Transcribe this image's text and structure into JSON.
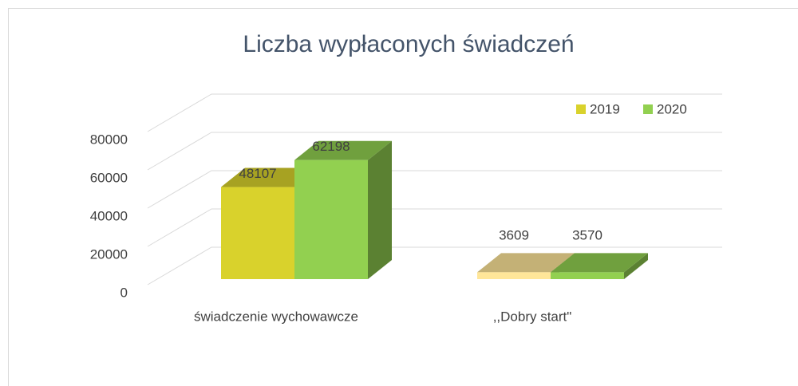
{
  "chart_data": {
    "type": "bar3d",
    "title": "Liczba wypłaconych świadczeń",
    "categories": [
      "świadczenie wychowawcze",
      ",,Dobry start\""
    ],
    "series": [
      {
        "name": "2019",
        "color": "#d9d22c",
        "point_colors": [
          "#d9d22c",
          "#ffe699"
        ],
        "values": [
          48107,
          3609
        ]
      },
      {
        "name": "2020",
        "color": "#92d050",
        "point_colors": [
          "#92d050",
          "#92d050"
        ],
        "values": [
          62198,
          3570
        ]
      }
    ],
    "ylim": [
      0,
      80000
    ],
    "yticks": [
      0,
      20000,
      40000,
      60000,
      80000
    ],
    "grid": true,
    "legend": "top-right"
  }
}
